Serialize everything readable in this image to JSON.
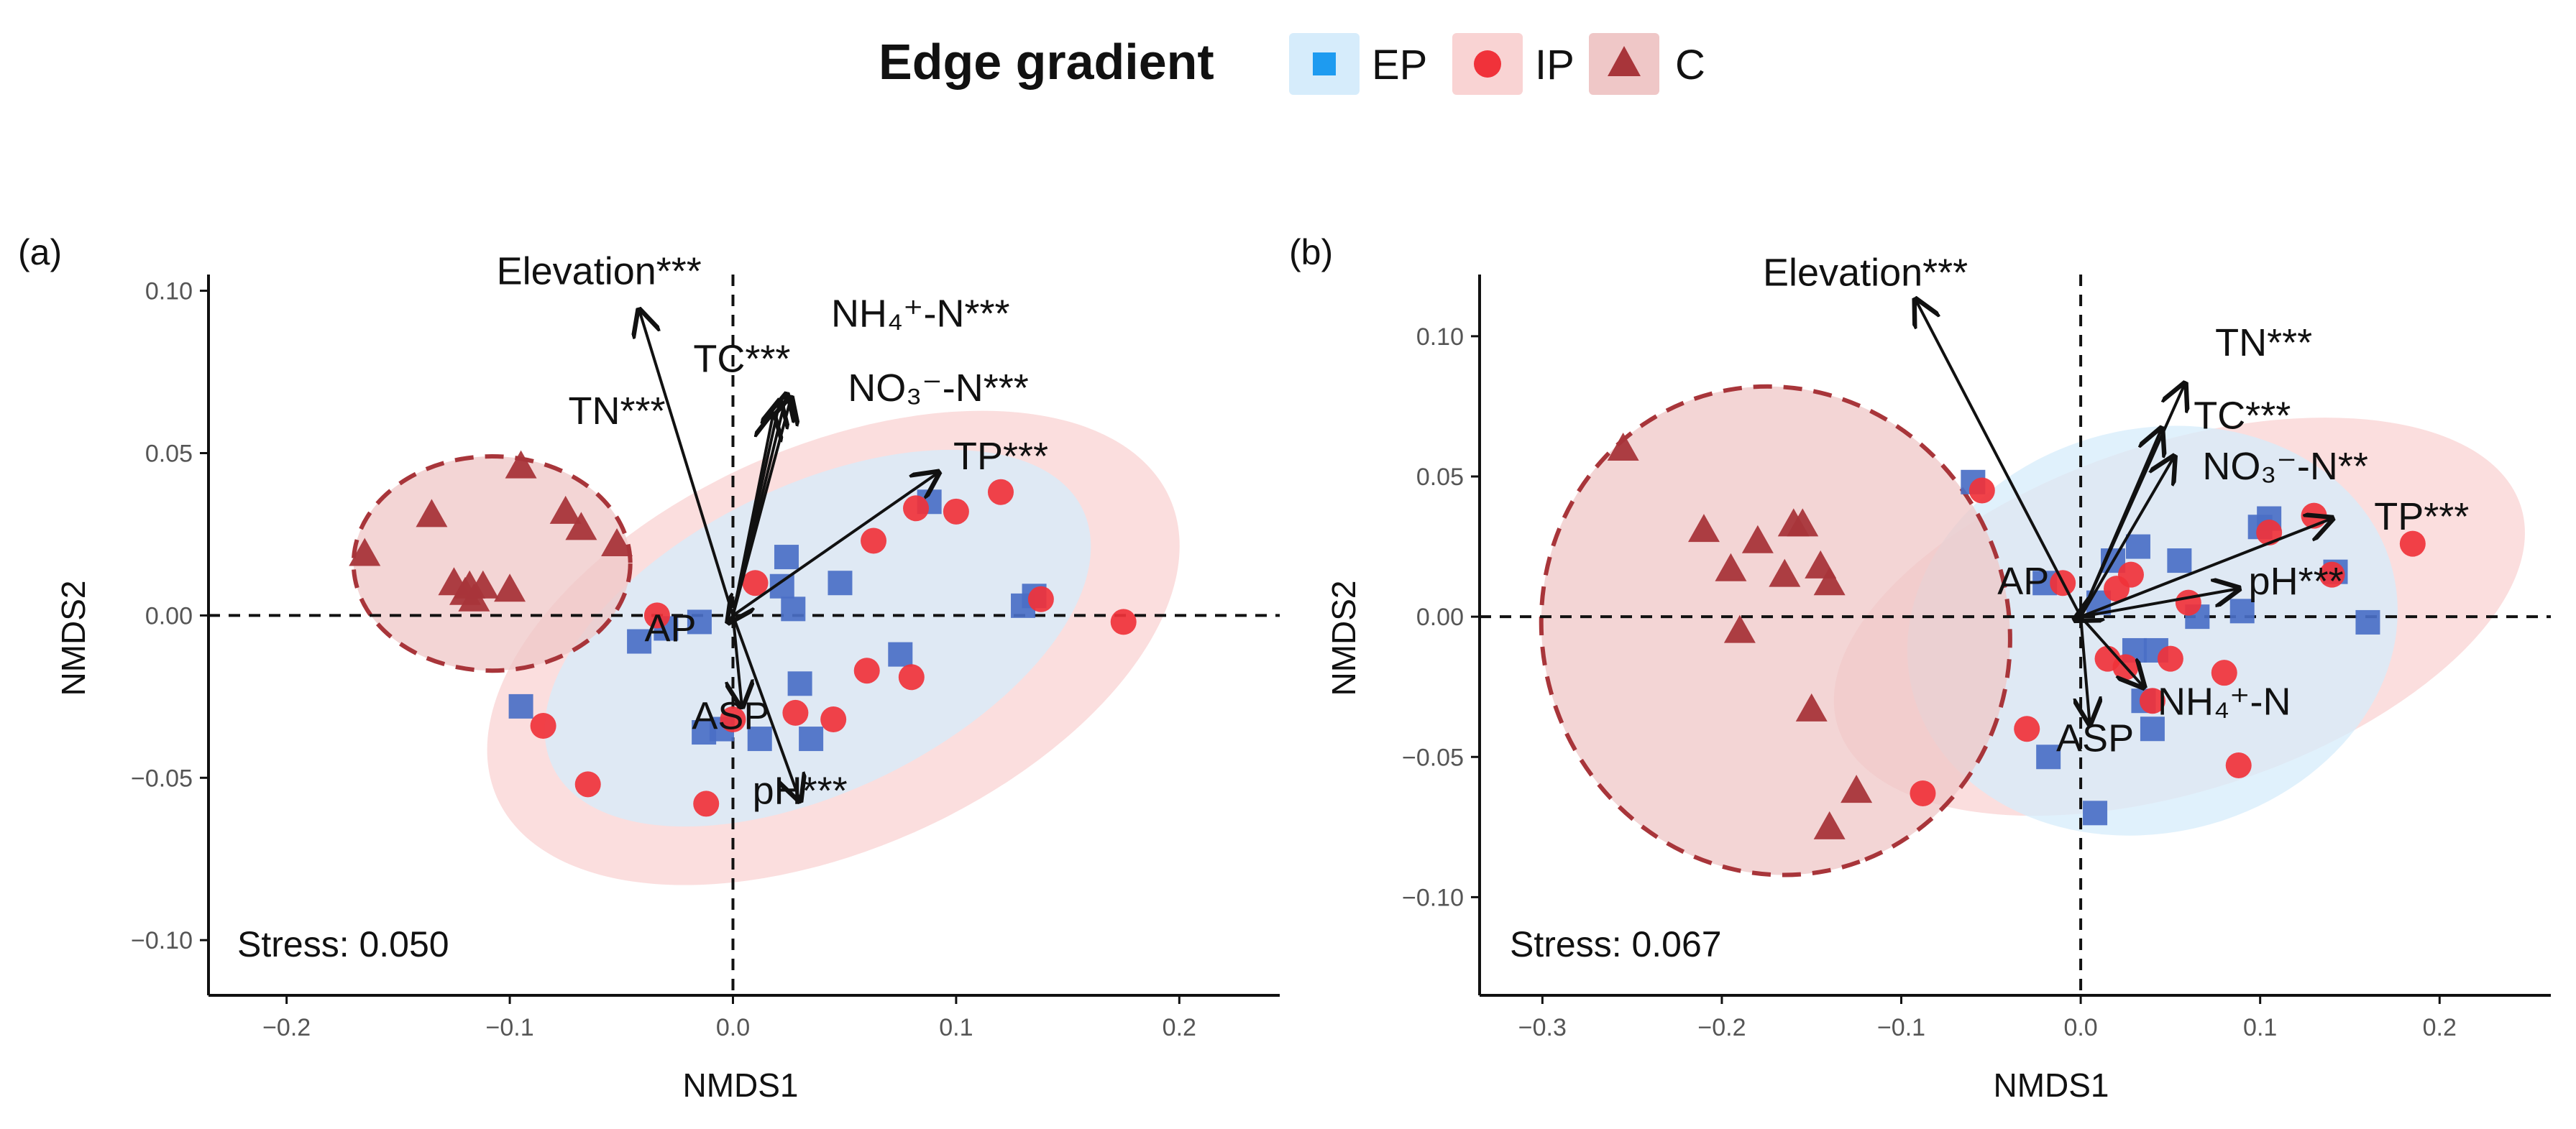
{
  "legend": {
    "title": "Edge gradient",
    "entries": [
      {
        "key": "EP",
        "label": "EP",
        "shape": "square",
        "color": "#1E9BF0",
        "fill": "#D6ECFB",
        "marker_color": "#4A6FC5"
      },
      {
        "key": "IP",
        "label": "IP",
        "shape": "circle",
        "color": "#F0323A",
        "fill": "#F9D3D3",
        "marker_color": "#F0323A"
      },
      {
        "key": "C",
        "label": "C",
        "shape": "triangle",
        "color": "#A8353A",
        "fill": "#EFC7C7",
        "marker_color": "#A8353A"
      }
    ]
  },
  "chart_data": [
    {
      "type": "scatter",
      "panel": "(a)",
      "xlabel": "NMDS1",
      "ylabel": "NMDS2",
      "xlim": [
        -0.235,
        0.245
      ],
      "ylim": [
        -0.117,
        0.105
      ],
      "xticks": [
        -0.2,
        -0.1,
        0.0,
        0.1,
        0.2
      ],
      "xtick_labels": [
        "−0.2",
        "−0.1",
        "0.0",
        "0.1",
        "0.2"
      ],
      "yticks": [
        -0.1,
        -0.05,
        0.0,
        0.05,
        0.1
      ],
      "ytick_labels": [
        "−0.10",
        "−0.05",
        "0.00",
        "0.05",
        "0.10"
      ],
      "stress": "Stress: 0.050",
      "series": [
        {
          "name": "EP",
          "points": [
            [
              -0.095,
              -0.028
            ],
            [
              -0.042,
              -0.008
            ],
            [
              -0.03,
              -0.004
            ],
            [
              -0.015,
              -0.002
            ],
            [
              -0.013,
              -0.036
            ],
            [
              -0.005,
              -0.035
            ],
            [
              0.012,
              -0.038
            ],
            [
              0.022,
              0.009
            ],
            [
              0.024,
              0.018
            ],
            [
              0.027,
              0.002
            ],
            [
              0.03,
              -0.021
            ],
            [
              0.035,
              -0.038
            ],
            [
              0.048,
              0.01
            ],
            [
              0.075,
              -0.012
            ],
            [
              0.088,
              0.035
            ],
            [
              0.13,
              0.003
            ],
            [
              0.135,
              0.006
            ]
          ]
        },
        {
          "name": "IP",
          "points": [
            [
              -0.085,
              -0.034
            ],
            [
              -0.065,
              -0.052
            ],
            [
              -0.034,
              0.0
            ],
            [
              -0.012,
              -0.058
            ],
            [
              0.0,
              -0.032
            ],
            [
              0.01,
              0.01
            ],
            [
              0.028,
              -0.03
            ],
            [
              0.045,
              -0.032
            ],
            [
              0.06,
              -0.017
            ],
            [
              0.063,
              0.023
            ],
            [
              0.08,
              -0.019
            ],
            [
              0.082,
              0.033
            ],
            [
              0.1,
              0.032
            ],
            [
              0.12,
              0.038
            ],
            [
              0.138,
              0.005
            ],
            [
              0.175,
              -0.002
            ]
          ]
        },
        {
          "name": "C",
          "points": [
            [
              -0.165,
              0.019
            ],
            [
              -0.135,
              0.031
            ],
            [
              -0.125,
              0.01
            ],
            [
              -0.12,
              0.007
            ],
            [
              -0.118,
              0.009
            ],
            [
              -0.116,
              0.005
            ],
            [
              -0.112,
              0.009
            ],
            [
              -0.1,
              0.008
            ],
            [
              -0.095,
              0.046
            ],
            [
              -0.075,
              0.032
            ],
            [
              -0.068,
              0.027
            ],
            [
              -0.052,
              0.022
            ]
          ]
        }
      ],
      "ellipses": [
        {
          "group": "IP",
          "center": [
            0.045,
            -0.01
          ],
          "rx": 0.165,
          "ry": 0.062,
          "rotation_deg": 24
        },
        {
          "group": "EP",
          "center": [
            0.038,
            -0.007
          ],
          "rx": 0.132,
          "ry": 0.047,
          "rotation_deg": 26
        },
        {
          "group": "C",
          "center": [
            -0.108,
            0.016
          ],
          "rx": 0.062,
          "ry": 0.033,
          "rotation_deg": 0
        }
      ],
      "vectors": [
        {
          "name": "Elevation***",
          "end": [
            -0.042,
            0.094
          ],
          "label_pos": [
            -0.06,
            0.102
          ]
        },
        {
          "name": "TN***",
          "end": [
            0.018,
            0.062
          ],
          "label_pos": [
            -0.052,
            0.059
          ]
        },
        {
          "name": "TC***",
          "end": [
            0.024,
            0.068
          ],
          "label_pos": [
            0.004,
            0.075
          ]
        },
        {
          "name": "NH₄⁺-N***",
          "end": [
            0.021,
            0.066
          ],
          "label_pos": [
            0.084,
            0.089
          ]
        },
        {
          "name": "NO₃⁻-N***",
          "end": [
            0.026,
            0.067
          ],
          "label_pos": [
            0.092,
            0.066
          ]
        },
        {
          "name": "TP***",
          "end": [
            0.092,
            0.044
          ],
          "label_pos": [
            0.12,
            0.045
          ]
        },
        {
          "name": "AP",
          "end": [
            -0.002,
            -0.002
          ],
          "label_pos": [
            -0.028,
            -0.008
          ]
        },
        {
          "name": "ASP",
          "end": [
            0.004,
            -0.028
          ],
          "label_pos": [
            -0.001,
            -0.035
          ]
        },
        {
          "name": "pH***",
          "end": [
            0.03,
            -0.057
          ],
          "label_pos": [
            0.03,
            -0.058
          ]
        }
      ]
    },
    {
      "type": "scatter",
      "panel": "(b)",
      "xlabel": "NMDS1",
      "ylabel": "NMDS2",
      "xlim": [
        -0.335,
        0.262
      ],
      "ylim": [
        -0.135,
        0.122
      ],
      "xticks": [
        -0.3,
        -0.2,
        -0.1,
        0.0,
        0.1,
        0.2
      ],
      "xtick_labels": [
        "−0.3",
        "−0.2",
        "−0.1",
        "0.0",
        "0.1",
        "0.2"
      ],
      "yticks": [
        -0.1,
        -0.05,
        0.0,
        0.05,
        0.1
      ],
      "ytick_labels": [
        "−0.10",
        "−0.05",
        "0.00",
        "0.05",
        "0.10"
      ],
      "stress": "Stress: 0.067",
      "series": [
        {
          "name": "EP",
          "points": [
            [
              -0.06,
              0.048
            ],
            [
              -0.02,
              0.012
            ],
            [
              -0.018,
              -0.05
            ],
            [
              0.008,
              -0.07
            ],
            [
              0.01,
              0.005
            ],
            [
              0.018,
              0.02
            ],
            [
              0.03,
              -0.012
            ],
            [
              0.032,
              0.025
            ],
            [
              0.035,
              -0.03
            ],
            [
              0.04,
              -0.04
            ],
            [
              0.042,
              -0.012
            ],
            [
              0.055,
              0.02
            ],
            [
              0.065,
              0.0
            ],
            [
              0.09,
              0.002
            ],
            [
              0.1,
              0.032
            ],
            [
              0.105,
              0.035
            ],
            [
              0.142,
              0.016
            ],
            [
              0.16,
              -0.002
            ]
          ]
        },
        {
          "name": "IP",
          "points": [
            [
              -0.088,
              -0.063
            ],
            [
              -0.055,
              0.045
            ],
            [
              -0.03,
              -0.04
            ],
            [
              -0.01,
              0.012
            ],
            [
              0.015,
              -0.015
            ],
            [
              0.02,
              0.01
            ],
            [
              0.025,
              -0.018
            ],
            [
              0.028,
              0.015
            ],
            [
              0.04,
              -0.03
            ],
            [
              0.05,
              -0.015
            ],
            [
              0.06,
              0.005
            ],
            [
              0.08,
              -0.02
            ],
            [
              0.088,
              -0.053
            ],
            [
              0.105,
              0.03
            ],
            [
              0.13,
              0.036
            ],
            [
              0.14,
              0.015
            ],
            [
              0.185,
              0.026
            ]
          ]
        },
        {
          "name": "C",
          "points": [
            [
              -0.255,
              0.06
            ],
            [
              -0.21,
              0.031
            ],
            [
              -0.195,
              0.017
            ],
            [
              -0.19,
              -0.005
            ],
            [
              -0.18,
              0.027
            ],
            [
              -0.165,
              0.015
            ],
            [
              -0.16,
              0.033
            ],
            [
              -0.155,
              0.033
            ],
            [
              -0.145,
              0.018
            ],
            [
              -0.14,
              0.012
            ],
            [
              -0.15,
              -0.033
            ],
            [
              -0.14,
              -0.075
            ],
            [
              -0.125,
              -0.062
            ]
          ]
        }
      ],
      "ellipses": [
        {
          "group": "IP",
          "center": [
            0.055,
            0.0
          ],
          "rx": 0.2,
          "ry": 0.062,
          "rotation_deg": 18
        },
        {
          "group": "EP",
          "center": [
            0.04,
            -0.005
          ],
          "rx": 0.138,
          "ry": 0.072,
          "rotation_deg": 14
        },
        {
          "group": "C",
          "center": [
            -0.17,
            -0.005
          ],
          "rx": 0.137,
          "ry": 0.083,
          "rotation_deg": -70
        }
      ],
      "vectors": [
        {
          "name": "Elevation***",
          "end": [
            -0.092,
            0.113
          ],
          "label_pos": [
            -0.12,
            0.118
          ]
        },
        {
          "name": "TN***",
          "end": [
            0.058,
            0.083
          ],
          "label_pos": [
            0.102,
            0.093
          ]
        },
        {
          "name": "TC***",
          "end": [
            0.045,
            0.067
          ],
          "label_pos": [
            0.09,
            0.067
          ]
        },
        {
          "name": "NO₃⁻-N**",
          "end": [
            0.052,
            0.057
          ],
          "label_pos": [
            0.114,
            0.049
          ]
        },
        {
          "name": "TP***",
          "end": [
            0.14,
            0.035
          ],
          "label_pos": [
            0.19,
            0.031
          ]
        },
        {
          "name": "pH***",
          "end": [
            0.088,
            0.01
          ],
          "label_pos": [
            0.12,
            0.008
          ]
        },
        {
          "name": "NH₄⁺-N",
          "end": [
            0.035,
            -0.025
          ],
          "label_pos": [
            0.08,
            -0.035
          ]
        },
        {
          "name": "AP",
          "end": [
            -0.003,
            -0.001
          ],
          "label_pos": [
            -0.032,
            0.008
          ]
        },
        {
          "name": "ASP",
          "end": [
            0.005,
            -0.038
          ],
          "label_pos": [
            0.008,
            -0.048
          ]
        }
      ]
    }
  ]
}
